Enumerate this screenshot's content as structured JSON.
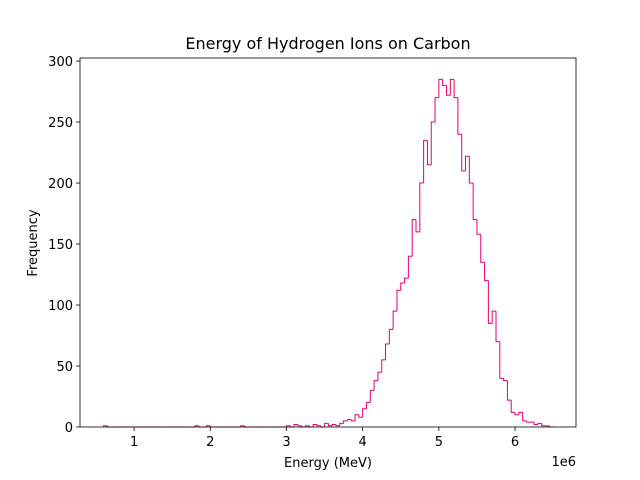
{
  "chart_data": {
    "type": "histogram",
    "title": "Energy of Hydrogen Ions on Carbon",
    "x_label": "Energy (MeV)",
    "y_label": "Frequency",
    "offset_label": "1e6",
    "color": "#e6006e",
    "bins": [
      600000,
      650000,
      700000,
      750000,
      800000,
      850000,
      900000,
      950000,
      1000000,
      1050000,
      1100000,
      1150000,
      1200000,
      1250000,
      1300000,
      1350000,
      1400000,
      1450000,
      1500000,
      1550000,
      1600000,
      1650000,
      1700000,
      1750000,
      1800000,
      1850000,
      1900000,
      1950000,
      2000000,
      2050000,
      2100000,
      2150000,
      2200000,
      2250000,
      2300000,
      2350000,
      2400000,
      2450000,
      2500000,
      2550000,
      2600000,
      2650000,
      2700000,
      2750000,
      2800000,
      2850000,
      2900000,
      2950000,
      3000000,
      3050000,
      3100000,
      3150000,
      3200000,
      3250000,
      3300000,
      3350000,
      3400000,
      3450000,
      3500000,
      3550000,
      3600000,
      3650000,
      3700000,
      3750000,
      3800000,
      3850000,
      3900000,
      3950000,
      4000000,
      4050000,
      4100000,
      4150000,
      4200000,
      4250000,
      4300000,
      4350000,
      4400000,
      4450000,
      4500000,
      4550000,
      4600000,
      4650000,
      4700000,
      4750000,
      4800000,
      4850000,
      4900000,
      4950000,
      5000000,
      5050000,
      5100000,
      5150000,
      5200000,
      5250000,
      5300000,
      5350000,
      5400000,
      5450000,
      5500000,
      5550000,
      5600000,
      5650000,
      5700000,
      5750000,
      5800000,
      5850000,
      5900000,
      5950000,
      6000000,
      6050000,
      6100000,
      6150000,
      6200000,
      6250000,
      6300000,
      6350000,
      6400000,
      6450000,
      6500000
    ],
    "values": [
      1,
      0,
      0,
      0,
      0,
      0,
      0,
      0,
      0,
      0,
      0,
      0,
      0,
      0,
      0,
      0,
      0,
      0,
      0,
      0,
      0,
      0,
      0,
      0,
      1,
      0,
      0,
      1,
      0,
      0,
      0,
      0,
      0,
      0,
      0,
      0,
      1,
      0,
      0,
      0,
      0,
      0,
      0,
      0,
      0,
      0,
      0,
      0,
      1,
      0,
      2,
      1,
      0,
      1,
      0,
      2,
      1,
      0,
      3,
      1,
      2,
      1,
      3,
      5,
      6,
      5,
      10,
      8,
      15,
      20,
      30,
      38,
      45,
      55,
      68,
      80,
      95,
      112,
      118,
      122,
      140,
      170,
      160,
      200,
      235,
      215,
      250,
      270,
      285,
      280,
      272,
      285,
      270,
      240,
      210,
      222,
      200,
      170,
      158,
      135,
      120,
      85,
      95,
      70,
      40,
      38,
      22,
      12,
      10,
      12,
      5,
      4,
      4,
      2,
      3,
      1,
      1,
      0
    ],
    "xlim": [
      290000,
      6800000
    ],
    "ylim": [
      0,
      302.5
    ],
    "xticks": [
      {
        "value": 1000000,
        "label": "1"
      },
      {
        "value": 2000000,
        "label": "2"
      },
      {
        "value": 3000000,
        "label": "3"
      },
      {
        "value": 4000000,
        "label": "4"
      },
      {
        "value": 5000000,
        "label": "5"
      },
      {
        "value": 6000000,
        "label": "6"
      }
    ],
    "yticks": [
      0,
      50,
      100,
      150,
      200,
      250,
      300
    ]
  }
}
